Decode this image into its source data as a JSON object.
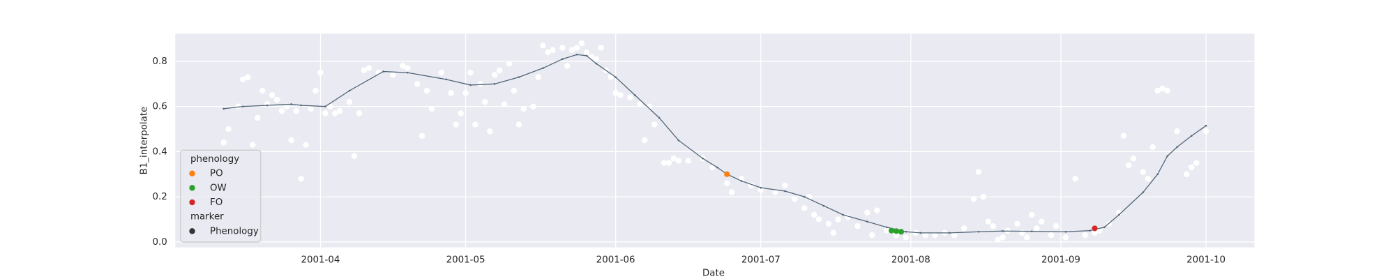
{
  "chart_data": {
    "type": "scatter",
    "xlabel": "Date",
    "ylabel": "B1_interpolate",
    "xlim": [
      61,
      284
    ],
    "ylim": [
      -0.024,
      0.922
    ],
    "xticks": [
      {
        "value": 91,
        "label": "2001-04"
      },
      {
        "value": 121,
        "label": "2001-05"
      },
      {
        "value": 152,
        "label": "2001-06"
      },
      {
        "value": 182,
        "label": "2001-07"
      },
      {
        "value": 213,
        "label": "2001-08"
      },
      {
        "value": 244,
        "label": "2001-09"
      },
      {
        "value": 274,
        "label": "2001-10"
      }
    ],
    "yticks": [
      {
        "value": 0,
        "label": "0.0"
      },
      0.2,
      0.4,
      0.6,
      0.8
    ],
    "grid": true,
    "scatter": {
      "color": "#ffffff",
      "x": [
        71,
        72,
        74,
        75,
        76,
        77,
        78,
        79,
        80,
        81,
        82,
        83,
        84,
        85,
        86,
        87,
        88,
        89,
        90,
        91,
        92,
        93,
        94,
        95,
        97,
        98,
        99,
        100,
        101,
        103,
        106,
        108,
        109,
        111,
        112,
        113,
        114,
        116,
        118,
        119,
        120,
        121,
        122,
        123,
        124,
        125,
        126,
        127,
        128,
        129,
        130,
        131,
        132,
        133,
        135,
        136,
        137,
        138,
        139,
        141,
        142,
        143,
        144,
        145,
        146,
        147,
        148,
        149,
        150,
        151,
        152,
        153,
        155,
        157,
        158,
        159,
        160,
        162,
        163,
        164,
        165,
        167,
        170,
        172,
        175,
        176,
        178,
        180,
        182,
        185,
        187,
        189,
        191,
        192,
        193,
        194,
        196,
        197,
        198,
        200,
        202,
        204,
        205,
        206,
        208,
        210,
        212,
        214,
        216,
        218,
        220,
        222,
        224,
        226,
        227,
        228,
        229,
        230,
        231,
        232,
        233,
        235,
        236,
        237,
        238,
        239,
        240,
        242,
        243,
        245,
        247,
        249,
        251,
        252,
        254,
        256,
        257,
        258,
        259,
        261,
        262,
        263,
        264,
        265,
        266,
        268,
        270,
        271,
        272,
        274
      ],
      "values": [
        0.44,
        0.5,
        0.6,
        0.72,
        0.73,
        0.43,
        0.55,
        0.67,
        0.61,
        0.65,
        0.63,
        0.58,
        0.6,
        0.45,
        0.58,
        0.28,
        0.43,
        0.59,
        0.67,
        0.75,
        0.57,
        0.6,
        0.57,
        0.58,
        0.62,
        0.38,
        0.57,
        0.76,
        0.77,
        0.75,
        0.74,
        0.78,
        0.77,
        0.7,
        0.47,
        0.67,
        0.59,
        0.75,
        0.66,
        0.52,
        0.57,
        0.66,
        0.75,
        0.52,
        0.7,
        0.62,
        0.49,
        0.74,
        0.76,
        0.61,
        0.79,
        0.67,
        0.52,
        0.59,
        0.6,
        0.73,
        0.87,
        0.84,
        0.85,
        0.86,
        0.78,
        0.85,
        0.86,
        0.88,
        0.84,
        0.82,
        0.81,
        0.86,
        0.76,
        0.73,
        0.66,
        0.65,
        0.64,
        0.61,
        0.45,
        0.6,
        0.52,
        0.35,
        0.35,
        0.37,
        0.36,
        0.36,
        0.37,
        0.33,
        0.26,
        0.22,
        0.28,
        0.25,
        0.23,
        0.22,
        0.25,
        0.19,
        0.15,
        0.2,
        0.12,
        0.1,
        0.08,
        0.04,
        0.1,
        0.11,
        0.07,
        0.13,
        0.03,
        0.14,
        0.05,
        0.03,
        0.02,
        0.04,
        0.03,
        0.03,
        0.04,
        0.03,
        0.06,
        0.19,
        0.31,
        0.2,
        0.09,
        0.07,
        0.01,
        0.02,
        0.05,
        0.08,
        0.04,
        0.02,
        0.12,
        0.06,
        0.09,
        0.03,
        0.07,
        0.02,
        0.28,
        0.03,
        0.04,
        0.05,
        0.08,
        0.13,
        0.47,
        0.34,
        0.37,
        0.31,
        0.28,
        0.42,
        0.67,
        0.68,
        0.67,
        0.49,
        0.3,
        0.33,
        0.35,
        0.49
      ]
    },
    "line": {
      "color": "#4f6475",
      "x": [
        71,
        75,
        80,
        85,
        87,
        92,
        97,
        104,
        109,
        117,
        122,
        127,
        132,
        137,
        141,
        144,
        146,
        148,
        152,
        156,
        161,
        165,
        170,
        173,
        175,
        178,
        182,
        187,
        191,
        195,
        199,
        204,
        208,
        212,
        215,
        221,
        227,
        232,
        238,
        245,
        250,
        253,
        256,
        261,
        264,
        266,
        268,
        271,
        274
      ],
      "values": [
        0.59,
        0.6,
        0.605,
        0.61,
        0.605,
        0.6,
        0.67,
        0.755,
        0.75,
        0.72,
        0.695,
        0.7,
        0.73,
        0.77,
        0.81,
        0.83,
        0.825,
        0.79,
        0.73,
        0.65,
        0.55,
        0.45,
        0.37,
        0.33,
        0.3,
        0.27,
        0.24,
        0.225,
        0.2,
        0.16,
        0.12,
        0.09,
        0.065,
        0.045,
        0.04,
        0.04,
        0.045,
        0.048,
        0.047,
        0.045,
        0.05,
        0.065,
        0.12,
        0.22,
        0.3,
        0.38,
        0.42,
        0.47,
        0.515
      ]
    },
    "series": [
      {
        "name": "PO",
        "color": "#ff7f0e",
        "x": [
          175
        ],
        "values": [
          0.3
        ]
      },
      {
        "name": "OW",
        "color": "#2ca02c",
        "x": [
          209,
          210,
          211
        ],
        "values": [
          0.05,
          0.048,
          0.045
        ]
      },
      {
        "name": "FO",
        "color": "#d62728",
        "x": [
          251
        ],
        "values": [
          0.06
        ]
      }
    ],
    "legend": {
      "title": "phenology",
      "style_title": "marker",
      "style_entries": [
        "Phenology"
      ],
      "style_color": "#333333",
      "loc": "lower left"
    }
  }
}
